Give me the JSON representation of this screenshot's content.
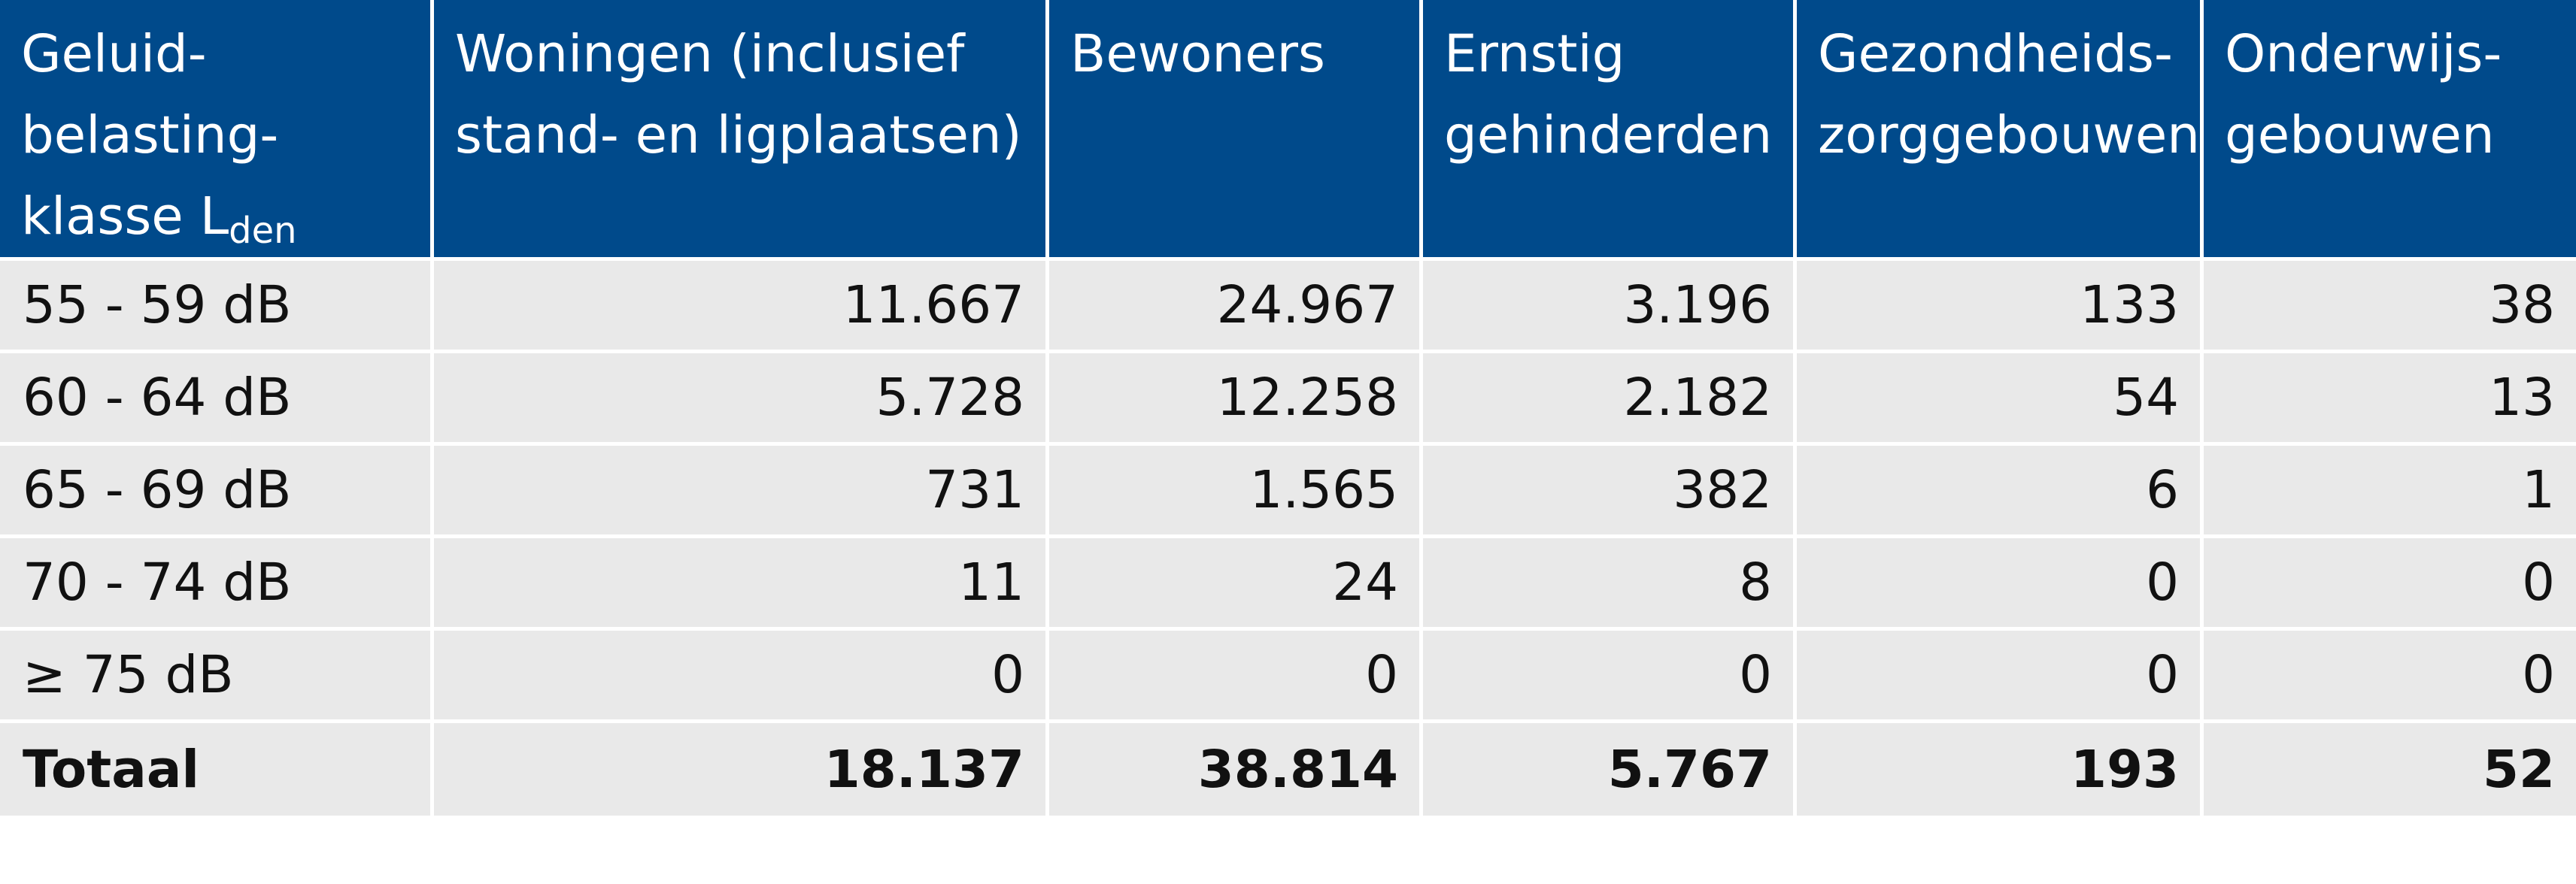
{
  "table": {
    "header": {
      "col1": {
        "line1": "Geluid-",
        "line2": "belasting-",
        "line3": "klasse L",
        "subscript": "den"
      },
      "col2": {
        "line1": "Woningen (inclusief",
        "line2": "stand- en ligplaatsen)"
      },
      "col3": {
        "line1": "Bewoners"
      },
      "col4": {
        "line1": "Ernstig",
        "line2": "gehinderden"
      },
      "col5": {
        "line1": "Gezondheids-",
        "line2": "zorggebouwen"
      },
      "col6": {
        "line1": "Onderwijs-",
        "line2": "gebouwen"
      }
    },
    "rows": [
      [
        "55 - 59 dB",
        "11.667",
        "24.967",
        "3.196",
        "133",
        "38"
      ],
      [
        "60 - 64 dB",
        "5.728",
        "12.258",
        "2.182",
        "54",
        "13"
      ],
      [
        "65 - 69 dB",
        "731",
        "1.565",
        "382",
        "6",
        "1"
      ],
      [
        "70 - 74 dB",
        "11",
        "24",
        "8",
        "0",
        "0"
      ],
      [
        "≥ 75 dB",
        "0",
        "0",
        "0",
        "0",
        "0"
      ]
    ],
    "total": [
      "Totaal",
      "18.137",
      "38.814",
      "5.767",
      "193",
      "52"
    ]
  },
  "colors": {
    "header_bg": "#004a8b",
    "header_text": "#ffffff",
    "body_bg": "#e9e9e9",
    "body_text": "#111111",
    "grid_lines": "#ffffff"
  }
}
